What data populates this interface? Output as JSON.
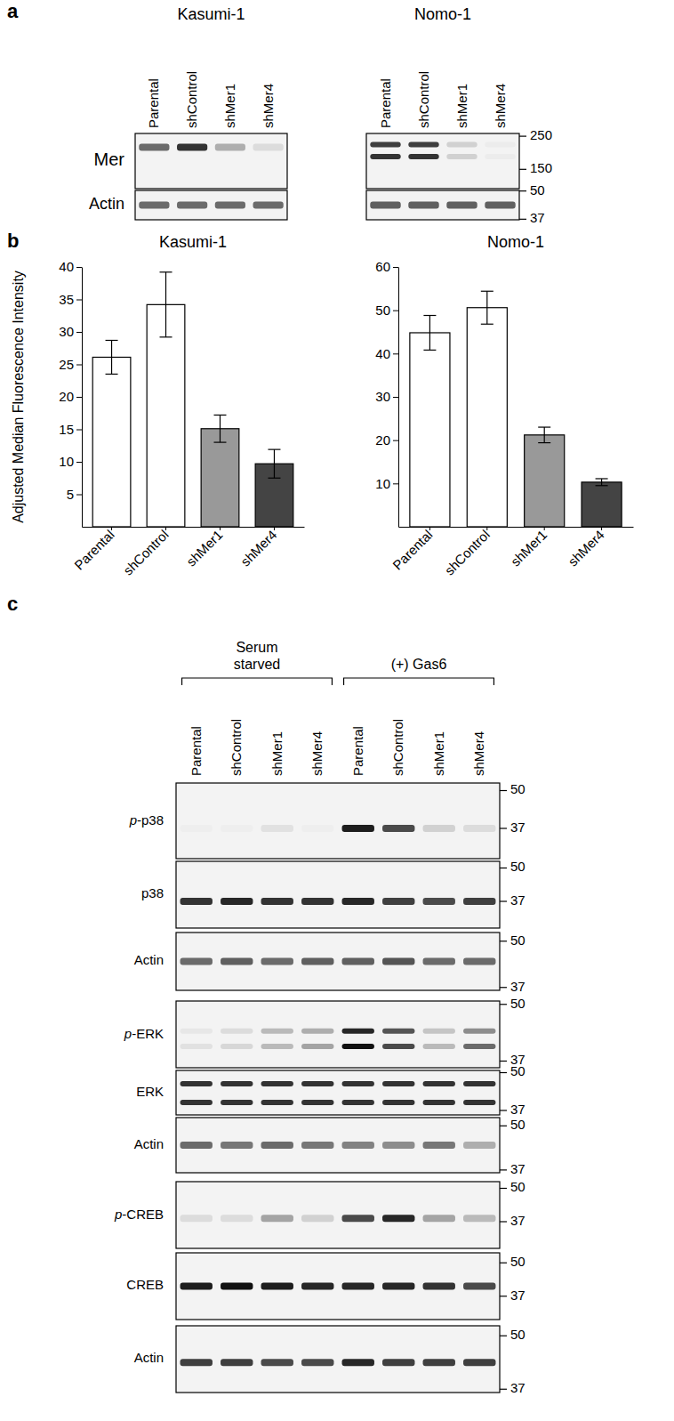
{
  "panel_labels": [
    "a",
    "b",
    "c"
  ],
  "blots": {
    "a": {
      "blots": [
        {
          "title": "Kasumi-1",
          "lanes": [
            "Parental",
            "shControl",
            "shMer1",
            "shMer4"
          ],
          "rows": [
            {
              "label": "Mer",
              "intensity": [
                0.6,
                0.85,
                0.3,
                0.1
              ]
            },
            {
              "label": "Actin",
              "intensity": [
                0.6,
                0.6,
                0.6,
                0.6
              ]
            }
          ]
        },
        {
          "title": "Nomo-1",
          "lanes": [
            "Parental",
            "shControl",
            "shMer1",
            "shMer4"
          ],
          "rows": [
            {
              "markers": [
                250,
                150
              ],
              "intensity": [
                [
                  0.8,
                  0.85
                ],
                [
                  0.8,
                  0.85
                ],
                [
                  0.15,
                  0.15
                ],
                [
                  0.03,
                  0.03
                ]
              ]
            },
            {
              "markers": [
                50,
                37
              ],
              "intensity": [
                0.65,
                0.65,
                0.65,
                0.65
              ]
            }
          ]
        }
      ]
    },
    "c": {
      "groups": [
        {
          "label": "Serum starved",
          "lanes": [
            "Parental",
            "shControl",
            "shMer1",
            "shMer4"
          ]
        },
        {
          "label": "(+) Gas6",
          "lanes": [
            "Parental",
            "shControl",
            "shMer1",
            "shMer4"
          ]
        }
      ],
      "rows": [
        {
          "label": "p-p38",
          "markers": [
            50,
            37
          ],
          "intensity": [
            0.02,
            0.02,
            0.08,
            0.02,
            0.95,
            0.75,
            0.15,
            0.1
          ]
        },
        {
          "label": "p38",
          "markers": [
            50,
            37
          ],
          "intensity": [
            0.85,
            0.9,
            0.85,
            0.85,
            0.9,
            0.8,
            0.75,
            0.8
          ]
        },
        {
          "label": "Actin",
          "markers": [
            50,
            37
          ],
          "intensity": [
            0.6,
            0.65,
            0.6,
            0.65,
            0.65,
            0.7,
            0.6,
            0.6
          ]
        },
        {
          "label": "p-ERK",
          "markers": [
            50,
            37
          ],
          "intensity": [
            [
              0.05,
              0.08
            ],
            [
              0.1,
              0.12
            ],
            [
              0.25,
              0.25
            ],
            [
              0.3,
              0.35
            ],
            [
              0.9,
              1.0
            ],
            [
              0.7,
              0.75
            ],
            [
              0.2,
              0.25
            ],
            [
              0.45,
              0.6
            ]
          ]
        },
        {
          "label": "ERK",
          "markers": [
            50,
            37
          ],
          "intensity": [
            [
              0.85,
              0.85
            ],
            [
              0.85,
              0.85
            ],
            [
              0.85,
              0.85
            ],
            [
              0.85,
              0.85
            ],
            [
              0.85,
              0.85
            ],
            [
              0.85,
              0.85
            ],
            [
              0.85,
              0.85
            ],
            [
              0.85,
              0.85
            ]
          ]
        },
        {
          "label": "Actin",
          "markers": [
            50,
            37
          ],
          "intensity": [
            0.6,
            0.55,
            0.6,
            0.55,
            0.5,
            0.45,
            0.55,
            0.3
          ]
        },
        {
          "label": "p-CREB",
          "markers": [
            50,
            37
          ],
          "intensity": [
            0.1,
            0.1,
            0.35,
            0.15,
            0.75,
            0.9,
            0.35,
            0.25
          ]
        },
        {
          "label": "CREB",
          "markers": [
            50,
            37
          ],
          "intensity": [
            0.95,
            1.0,
            0.95,
            0.9,
            0.9,
            0.9,
            0.85,
            0.75
          ]
        },
        {
          "label": "Actin",
          "markers": [
            50,
            37
          ],
          "intensity": [
            0.8,
            0.8,
            0.75,
            0.75,
            0.9,
            0.8,
            0.8,
            0.8
          ]
        }
      ]
    }
  },
  "chart_data": [
    {
      "type": "bar",
      "title": "Kasumi-1",
      "ylabel": "Adjusted Median Fluorescence Intensity",
      "categories": [
        "Parental",
        "shControl",
        "shMer1",
        "shMer4"
      ],
      "values": [
        26.1,
        34.2,
        15.1,
        9.7
      ],
      "errors": [
        2.6,
        5.0,
        2.1,
        2.2
      ],
      "colors": [
        "#ffffff",
        "#ffffff",
        "#999999",
        "#444444"
      ],
      "ylim": [
        0,
        40
      ],
      "yticks": [
        5,
        10,
        15,
        20,
        25,
        30,
        35,
        40
      ]
    },
    {
      "type": "bar",
      "title": "Nomo-1",
      "categories": [
        "Parental",
        "shControl",
        "shMer1",
        "shMer4"
      ],
      "values": [
        44.8,
        50.6,
        21.2,
        10.3
      ],
      "errors": [
        4.0,
        3.8,
        1.8,
        0.8
      ],
      "colors": [
        "#ffffff",
        "#ffffff",
        "#999999",
        "#444444"
      ],
      "ylim": [
        0,
        60
      ],
      "yticks": [
        10,
        20,
        30,
        40,
        50,
        60
      ]
    }
  ]
}
